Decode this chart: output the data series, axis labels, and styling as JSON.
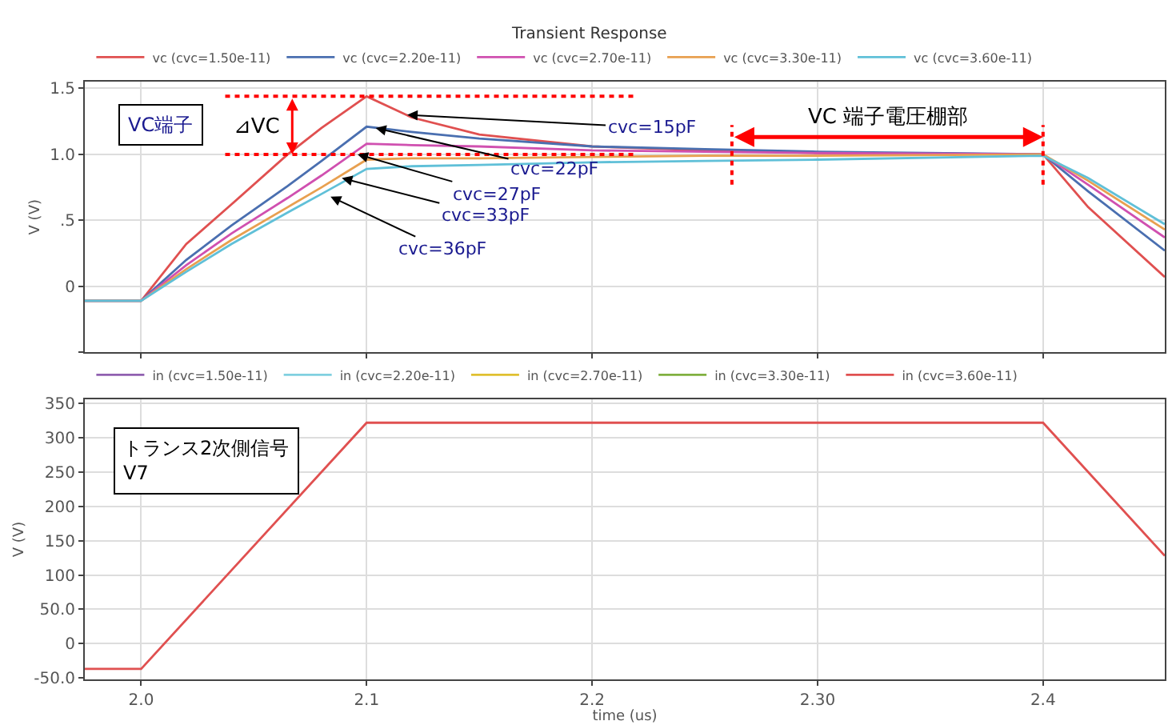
{
  "chart_data": [
    {
      "type": "line",
      "title": "Transient Response",
      "ylabel": "V (V)",
      "x": [
        1.975,
        2.0,
        2.02,
        2.04,
        2.065,
        2.08,
        2.1,
        2.12,
        2.15,
        2.2,
        2.25,
        2.3,
        2.4,
        2.42,
        2.454
      ],
      "series": [
        {
          "name": "vc (cvc=1.50e-11)",
          "color": "#e05050",
          "values": [
            -0.11,
            -0.11,
            0.32,
            0.62,
            1.0,
            1.2,
            1.44,
            1.28,
            1.15,
            1.06,
            1.03,
            1.01,
            1.0,
            0.6,
            0.07
          ]
        },
        {
          "name": "vc (cvc=2.20e-11)",
          "color": "#4a6fb0",
          "values": [
            -0.11,
            -0.11,
            0.2,
            0.46,
            0.76,
            0.95,
            1.21,
            1.17,
            1.12,
            1.06,
            1.04,
            1.02,
            1.0,
            0.72,
            0.27
          ]
        },
        {
          "name": "vc (cvc=2.70e-11)",
          "color": "#d050b0",
          "values": [
            -0.11,
            -0.11,
            0.16,
            0.4,
            0.67,
            0.84,
            1.08,
            1.07,
            1.06,
            1.03,
            1.02,
            1.01,
            1.0,
            0.77,
            0.37
          ]
        },
        {
          "name": "vc (cvc=3.30e-11)",
          "color": "#e8a050",
          "values": [
            -0.11,
            -0.11,
            0.13,
            0.35,
            0.6,
            0.75,
            0.96,
            0.97,
            0.97,
            0.98,
            0.99,
            0.99,
            1.0,
            0.8,
            0.43
          ]
        },
        {
          "name": "vc (cvc=3.60e-11)",
          "color": "#60c0d8",
          "values": [
            -0.11,
            -0.11,
            0.11,
            0.32,
            0.56,
            0.7,
            0.89,
            0.91,
            0.92,
            0.94,
            0.95,
            0.96,
            0.99,
            0.82,
            0.47
          ]
        }
      ],
      "xlim": [
        1.975,
        2.454
      ],
      "xticks": [
        2.0,
        2.1,
        2.2,
        2.3,
        2.4
      ],
      "ylim": [
        -0.5,
        1.55
      ],
      "yticks": [
        {
          "value": -0.5,
          "label": null
        },
        0,
        {
          "value": 0.5,
          "label": ".5"
        },
        {
          "value": 1.0,
          "label": "1.0"
        },
        1.5
      ],
      "tick_labels": "y",
      "grid": true,
      "legend": "top left",
      "marker": "none",
      "line_style": "solid",
      "ref_lines": [
        {
          "axis": "y",
          "value": 1.44,
          "label": null,
          "color": "#ff0000",
          "line_style": "dotted"
        },
        {
          "axis": "y",
          "value": 1.0,
          "label": null,
          "color": "#ff0000",
          "line_style": "dotted"
        },
        {
          "axis": "x",
          "value": 2.262,
          "label": null,
          "color": "#ff0000",
          "line_style": "dotted"
        },
        {
          "axis": "x",
          "value": 2.4,
          "label": null,
          "color": "#ff0000",
          "line_style": "dotted"
        }
      ],
      "annotations": [
        "VC端子",
        {
          "text": "⊿VC",
          "x": 2.067,
          "y": 1.44
        },
        {
          "text": "cvc=15pF",
          "x": 2.118,
          "y": 1.3
        },
        {
          "text": "cvc=22pF",
          "x": 2.104,
          "y": 1.2
        },
        {
          "text": "cvc=27pF",
          "x": 2.096,
          "y": 1.0
        },
        {
          "text": "cvc=33pF",
          "x": 2.089,
          "y": 0.82
        },
        {
          "text": "cvc=36pF",
          "x": 2.084,
          "y": 0.68
        },
        "VC 端子電圧棚部"
      ]
    },
    {
      "type": "line",
      "xlabel": "time (us)",
      "ylabel": "V (V)",
      "x": [
        1.975,
        2.0,
        2.1,
        2.4,
        2.454
      ],
      "series": [
        {
          "name": "in (cvc=1.50e-11)",
          "color": "#9060b0",
          "values": [
            null,
            null,
            null,
            null,
            null
          ]
        },
        {
          "name": "in (cvc=2.20e-11)",
          "color": "#80d0e0",
          "values": [
            null,
            null,
            null,
            null,
            null
          ]
        },
        {
          "name": "in (cvc=2.70e-11)",
          "color": "#e0c030",
          "values": [
            null,
            null,
            null,
            null,
            null
          ]
        },
        {
          "name": "in (cvc=3.30e-11)",
          "color": "#80b040",
          "values": [
            null,
            null,
            null,
            null,
            null
          ]
        },
        {
          "name": "in (cvc=3.60e-11)",
          "color": "#e05050",
          "values": [
            -37,
            -37,
            322,
            322,
            128
          ]
        }
      ],
      "xlim": [
        1.975,
        2.454
      ],
      "xticks": [
        {
          "value": 2.0,
          "label": "2.0"
        },
        2.1,
        2.2,
        {
          "value": 2.3,
          "label": "2.30"
        },
        2.4
      ],
      "ylim": [
        -52,
        356
      ],
      "yticks": [
        {
          "value": -50,
          "label": "-50.0"
        },
        0,
        {
          "value": 50,
          "label": "50.0"
        },
        100,
        150,
        200,
        250,
        300,
        350
      ],
      "grid": true,
      "legend": "top left",
      "marker": "none",
      "line_style": "solid",
      "annotations": [
        "トランス2次側信号\nV7"
      ]
    }
  ]
}
